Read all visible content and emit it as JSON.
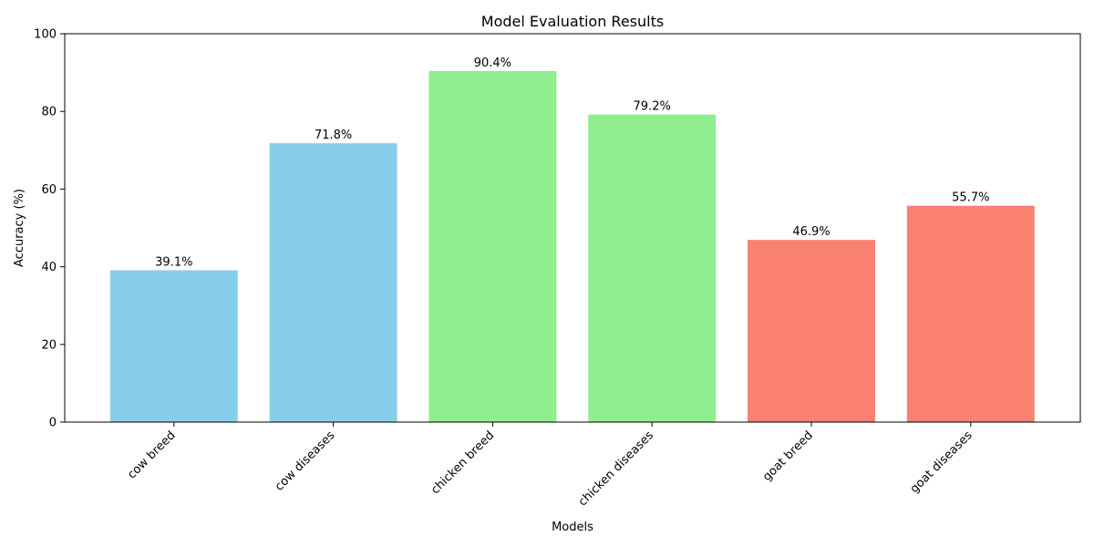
{
  "chart_data": {
    "type": "bar",
    "title": "Model Evaluation Results",
    "xlabel": "Models",
    "ylabel": "Accuracy (%)",
    "categories": [
      "cow breed",
      "cow diseases",
      "chicken breed",
      "chicken diseases",
      "goat breed",
      "goat diseases"
    ],
    "values": [
      39.1,
      71.8,
      90.4,
      79.2,
      46.9,
      55.7
    ],
    "data_labels": [
      "39.1%",
      "71.8%",
      "90.4%",
      "79.2%",
      "46.9%",
      "55.7%"
    ],
    "colors": [
      "#87ceeb",
      "#87ceeb",
      "#90ee90",
      "#90ee90",
      "#fa8072",
      "#fa8072"
    ],
    "ylim": [
      0,
      100
    ],
    "yticks": [
      0,
      20,
      40,
      60,
      80,
      100
    ],
    "ytick_labels": [
      "0",
      "20",
      "40",
      "60",
      "80",
      "100"
    ],
    "grid": false,
    "legend": "none"
  }
}
